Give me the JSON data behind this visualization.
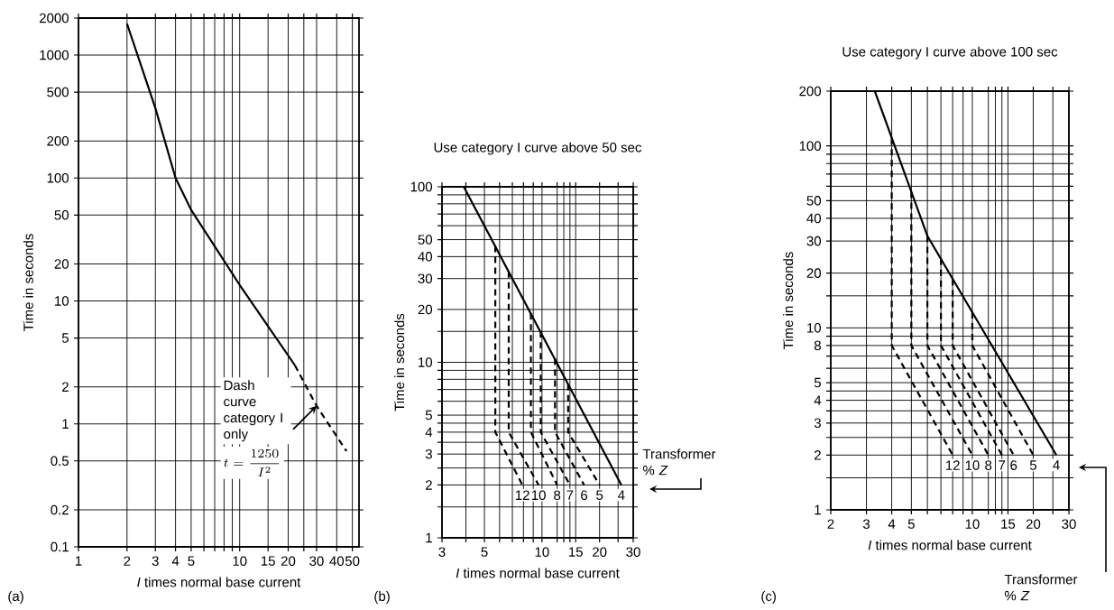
{
  "chart_data": [
    {
      "type": "line",
      "xlabel": "*I* times normal base current",
      "ylabel": "Time in seconds",
      "log": "xy",
      "grid": true,
      "xlim": [
        1,
        55
      ],
      "ylim": [
        0.1,
        2000
      ],
      "xticks": [
        1,
        2,
        3,
        4,
        5,
        {
          "value": 6,
          "label": null
        },
        {
          "value": 7,
          "label": null
        },
        {
          "value": 8,
          "label": null
        },
        {
          "value": 9,
          "label": null
        },
        10,
        15,
        20,
        {
          "value": 25,
          "label": null
        },
        30,
        40,
        50
      ],
      "yticks": [
        0.1,
        0.2,
        0.5,
        1,
        2,
        5,
        10,
        20,
        50,
        100,
        200,
        500,
        1000,
        2000
      ],
      "series": [
        {
          "color": "#000000",
          "line_style": "solid",
          "x": [
            2,
            3,
            4,
            5,
            10,
            22
          ],
          "values": [
            1800,
            370,
            100,
            55,
            13.5,
            3
          ]
        },
        {
          "color": "#000000",
          "line_style": "dashed",
          "x": [
            22,
            30,
            46
          ],
          "values": [
            3,
            1.4,
            0.6
          ]
        }
      ],
      "annotations": [
        {
          "text": "Dash curve category I only",
          "x": 30,
          "y": 1.4
        },
        "t=\\frac{1250}{I^2}",
        "(a)"
      ]
    },
    {
      "type": "line",
      "title": "Use category I curve above 50 sec",
      "xlabel": "*I*  times normal base current",
      "ylabel": "Time in seconds",
      "log": "xy",
      "grid": true,
      "xlim": [
        3,
        30
      ],
      "ylim": [
        1,
        100
      ],
      "xticks": [
        3,
        {
          "value": 4,
          "label": null
        },
        5,
        {
          "value": 6,
          "label": null
        },
        {
          "value": 7,
          "label": null
        },
        {
          "value": 8,
          "label": null
        },
        {
          "value": 9,
          "label": null
        },
        10,
        {
          "value": 12,
          "label": null
        },
        {
          "value": 13,
          "label": null
        },
        {
          "value": 14,
          "label": null
        },
        15,
        20,
        {
          "value": 25,
          "label": null
        },
        30
      ],
      "yticks": [
        1,
        {
          "value": 1.5,
          "label": null
        },
        2,
        {
          "value": 2.5,
          "label": null
        },
        3,
        {
          "value": 3.5,
          "label": null
        },
        4,
        {
          "value": 4.5,
          "label": null
        },
        5,
        {
          "value": 6,
          "label": null
        },
        {
          "value": 7,
          "label": null
        },
        {
          "value": 8,
          "label": null
        },
        {
          "value": 9,
          "label": null
        },
        10,
        {
          "value": 15,
          "label": null
        },
        20,
        30,
        40,
        50,
        {
          "value": 60,
          "label": null
        },
        {
          "value": 70,
          "label": null
        },
        {
          "value": 80,
          "label": null
        },
        {
          "value": 90,
          "label": null
        },
        100
      ],
      "series": [
        {
          "name": "4",
          "color": "#000000",
          "line_style": "solid",
          "x": [
            3.9,
            26
          ],
          "values": [
            100,
            2
          ]
        },
        {
          "name": "12",
          "color": "#000000",
          "line_style": "dashed",
          "x": [
            5.7,
            5.7,
            7.9
          ],
          "values": [
            46,
            4,
            2
          ]
        },
        {
          "name": "10",
          "color": "#000000",
          "line_style": "dashed",
          "x": [
            6.7,
            6.7,
            9.6
          ],
          "values": [
            33,
            4,
            2
          ]
        },
        {
          "name": "8",
          "color": "#000000",
          "line_style": "dashed",
          "x": [
            8.75,
            8.75,
            12
          ],
          "values": [
            19,
            4,
            2
          ]
        },
        {
          "name": "7",
          "color": "#000000",
          "line_style": "dashed",
          "x": [
            9.85,
            9.85,
            14
          ],
          "values": [
            15,
            4,
            2
          ]
        },
        {
          "name": "6",
          "color": "#000000",
          "line_style": "dashed",
          "x": [
            11.7,
            11.7,
            16.6
          ],
          "values": [
            10.5,
            4,
            2
          ]
        },
        {
          "name": "5",
          "color": "#000000",
          "line_style": "dashed",
          "x": [
            13.7,
            13.7,
            20
          ],
          "values": [
            7.5,
            4,
            2
          ]
        }
      ],
      "annotations": [
        "Transformer % *Z*",
        "(b)"
      ]
    },
    {
      "type": "line",
      "title": "Use category I curve above 100 sec",
      "xlabel": "*I*  times normal base current",
      "ylabel": "Time in seconds",
      "log": "xy",
      "grid": true,
      "xlim": [
        2,
        30
      ],
      "ylim": [
        1,
        200
      ],
      "xticks": [
        2,
        3,
        4,
        5,
        {
          "value": 6,
          "label": null
        },
        {
          "value": 7,
          "label": null
        },
        {
          "value": 8,
          "label": null
        },
        {
          "value": 9,
          "label": null
        },
        10,
        {
          "value": 12,
          "label": null
        },
        {
          "value": 13,
          "label": null
        },
        {
          "value": 14,
          "label": null
        },
        15,
        20,
        {
          "value": 25,
          "label": null
        },
        30
      ],
      "yticks": [
        1,
        {
          "value": 1.5,
          "label": null
        },
        2,
        {
          "value": 2.5,
          "label": null
        },
        3,
        {
          "value": 3.5,
          "label": null
        },
        4,
        {
          "value": 4.5,
          "label": null
        },
        5,
        {
          "value": 6,
          "label": null
        },
        {
          "value": 7,
          "label": null
        },
        8,
        {
          "value": 9,
          "label": null
        },
        10,
        {
          "value": 15,
          "label": null
        },
        20,
        30,
        40,
        50,
        {
          "value": 60,
          "label": null
        },
        {
          "value": 70,
          "label": null
        },
        {
          "value": 80,
          "label": null
        },
        {
          "value": 90,
          "label": null
        },
        100,
        200
      ],
      "series": [
        {
          "name": "4",
          "color": "#000000",
          "line_style": "solid",
          "x": [
            3.3,
            6,
            26
          ],
          "values": [
            200,
            32,
            2
          ]
        },
        {
          "name": "12",
          "color": "#000000",
          "line_style": "dashed",
          "x": [
            4,
            4,
            8
          ],
          "values": [
            110,
            8,
            2
          ]
        },
        {
          "name": "10",
          "color": "#000000",
          "line_style": "dashed",
          "x": [
            5,
            5,
            10
          ],
          "values": [
            56,
            8,
            2
          ]
        },
        {
          "name": "8",
          "color": "#000000",
          "line_style": "dashed",
          "x": [
            6,
            6,
            12
          ],
          "values": [
            32,
            8,
            2
          ]
        },
        {
          "name": "7",
          "color": "#000000",
          "line_style": "dashed",
          "x": [
            7,
            7,
            14
          ],
          "values": [
            24,
            8,
            2
          ]
        },
        {
          "name": "6",
          "color": "#000000",
          "line_style": "dashed",
          "x": [
            8,
            8,
            16
          ],
          "values": [
            18.5,
            8,
            2
          ]
        },
        {
          "name": "5",
          "color": "#000000",
          "line_style": "dashed",
          "x": [
            10,
            10,
            20
          ],
          "values": [
            12.2,
            8,
            2
          ]
        }
      ],
      "annotations": [
        "Transformer % *Z*",
        "(c)"
      ]
    }
  ]
}
